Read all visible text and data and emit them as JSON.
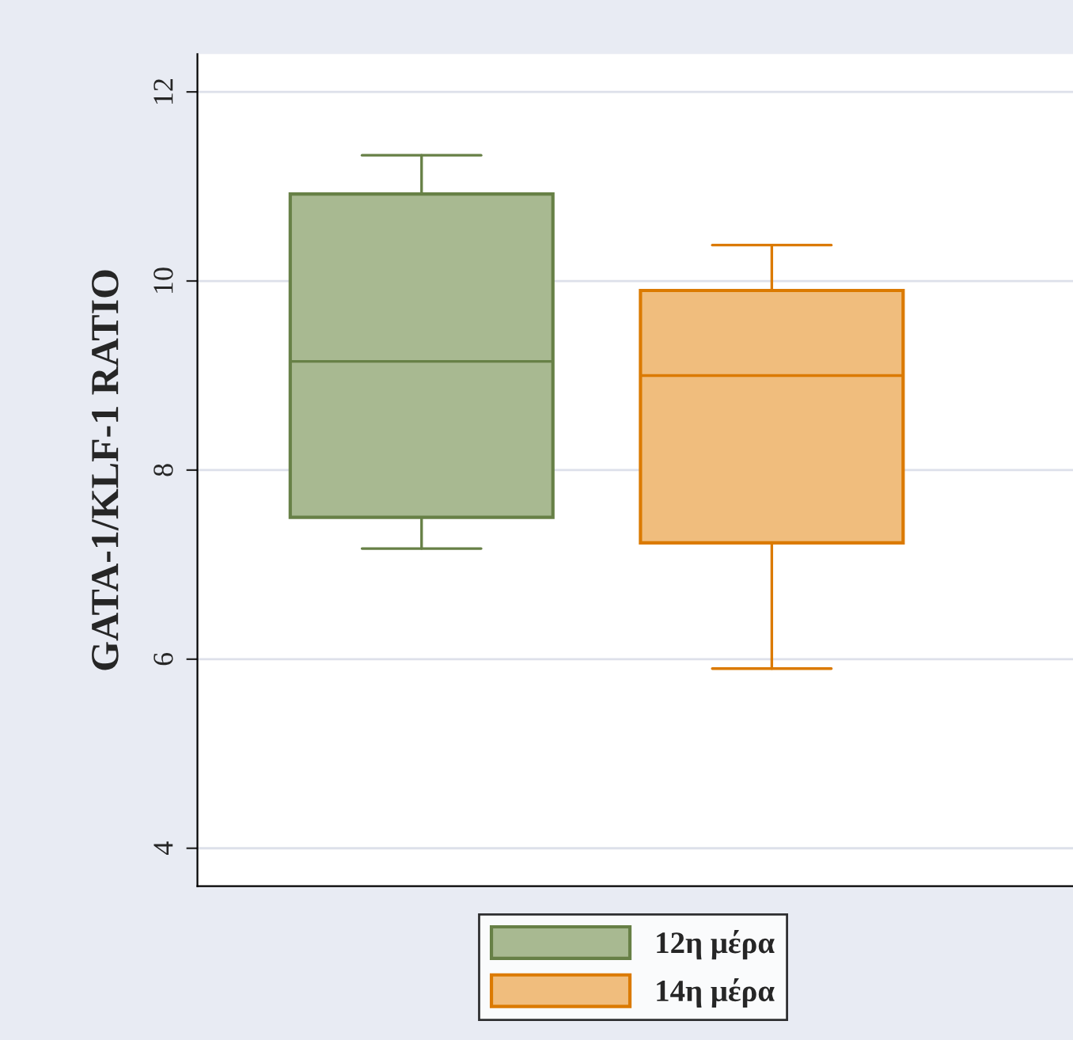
{
  "chart_data": {
    "type": "box",
    "ylabel": "GATA-1/KLF-1 RATIO",
    "categories": [
      null,
      null
    ],
    "series": [
      {
        "name": "12η μέρα",
        "color": "#a8b991",
        "boxes": [
          {
            "low": 7.17,
            "q1": 7.5,
            "median": 9.15,
            "q3": 10.92,
            "high": 11.33
          },
          null
        ]
      },
      {
        "name": "14η μέρα",
        "color": "#f0bd7d",
        "boxes": [
          null,
          {
            "low": 5.9,
            "q1": 7.23,
            "median": 9.0,
            "q3": 9.9,
            "high": 10.38
          }
        ]
      }
    ],
    "ylim": [
      3.6,
      12.4
    ],
    "yticks": [
      4,
      6,
      8,
      10,
      12
    ],
    "grid": "y",
    "legend": "bottom"
  }
}
